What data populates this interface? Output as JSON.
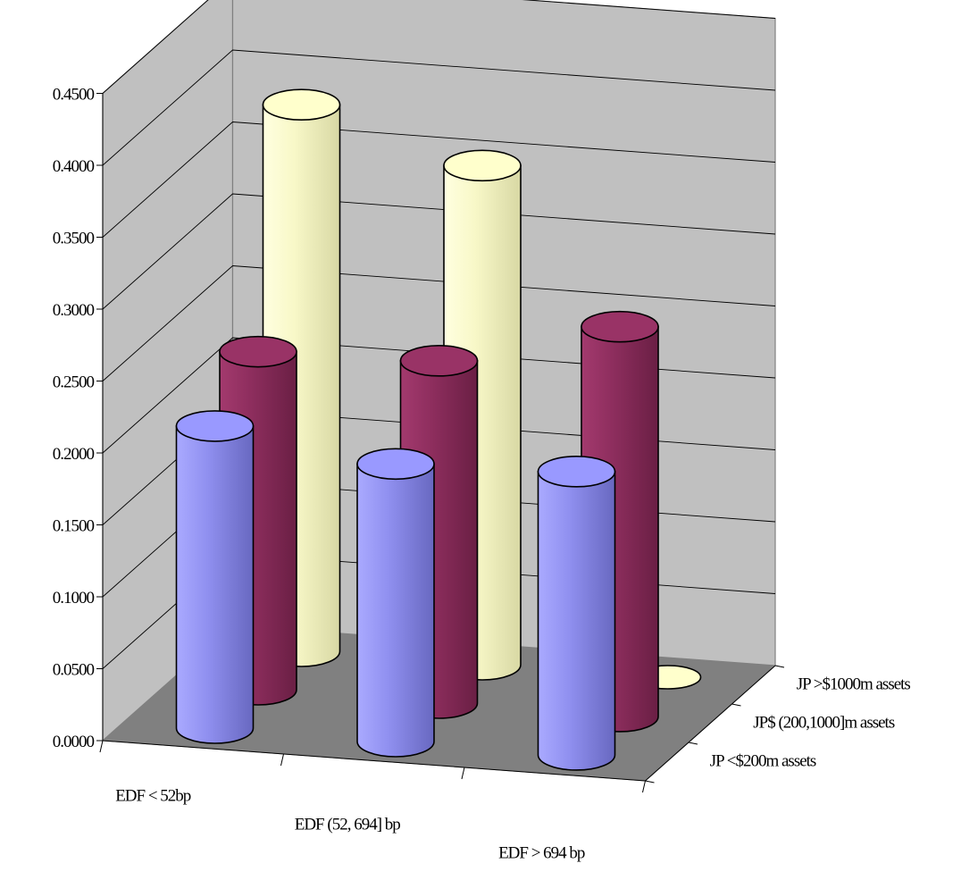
{
  "chart_data": {
    "type": "bar3d-cylinder",
    "title": "",
    "categories": [
      "EDF < 52bp",
      "EDF (52, 694] bp",
      "EDF > 694 bp"
    ],
    "series": [
      {
        "name": "JP <$200m assets",
        "values": [
          0.21,
          0.193,
          0.197
        ],
        "color": "#9999ff"
      },
      {
        "name": "JP$ (200,1000]m assets",
        "values": [
          0.235,
          0.238,
          0.271
        ],
        "color": "#993366"
      },
      {
        "name": "JP >$1000m assets",
        "values": [
          0.38,
          0.347,
          0.0
        ],
        "color": "#ffffcc"
      }
    ],
    "ylim": [
      0,
      0.45
    ],
    "yticks": [
      "0.0000",
      "0.0500",
      "0.1000",
      "0.1500",
      "0.2000",
      "0.2500",
      "0.3000",
      "0.3500",
      "0.4000",
      "0.4500"
    ],
    "grid": true,
    "wall_color": "#c0c0c0",
    "floor_color": "#808080"
  }
}
